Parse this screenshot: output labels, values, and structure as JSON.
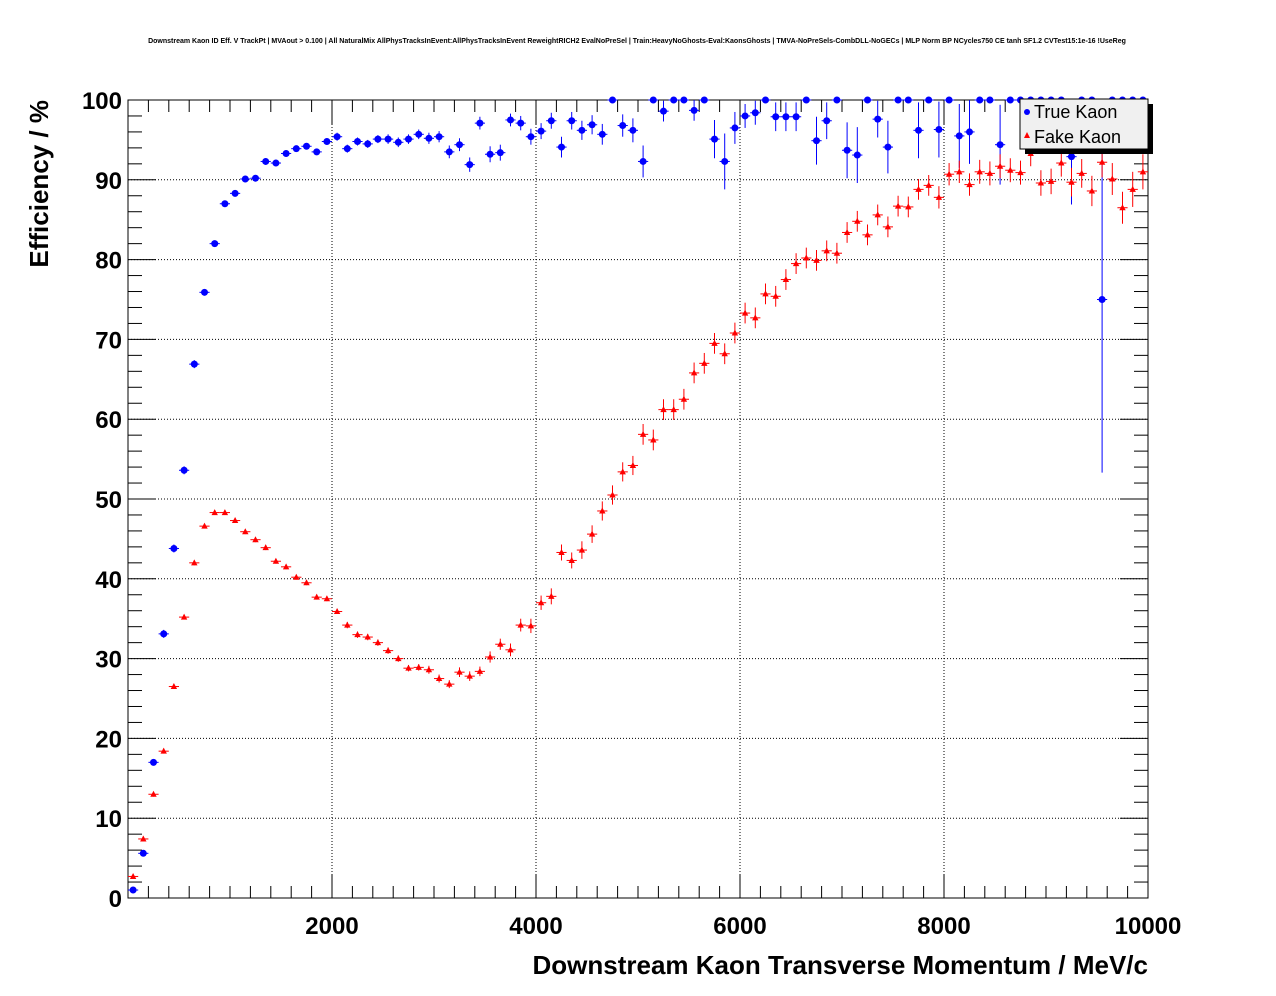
{
  "chart_data": {
    "type": "scatter",
    "title": "Downstream Kaon ID Eff. V TrackPt | MVAout > 0.100 | All NaturalMix AllPhysTracksInEvent:AllPhysTracksInEvent ReweightRICH2 EvalNoPreSel | Train:HeavyNoGhosts-Eval:KaonsGhosts | TMVA-NoPreSels-CombDLL-NoGECs | MLP Norm BP NCycles750 CE tanh SF1.2 CVTest15:1e-16 !UseReg",
    "xlabel": "Downstream Kaon Transverse Momentum / MeV/c",
    "ylabel": "Efficiency / %",
    "xlim": [
      0,
      10000
    ],
    "ylim": [
      0,
      100
    ],
    "x_ticks": [
      "2000",
      "4000",
      "6000",
      "8000",
      "10000"
    ],
    "y_ticks": [
      "0",
      "10",
      "20",
      "30",
      "40",
      "50",
      "60",
      "70",
      "80",
      "90",
      "100"
    ],
    "grid": true,
    "legend_position": "top-right",
    "bin_width": 100,
    "series": [
      {
        "name": "True Kaon",
        "color": "#0000ff",
        "marker": "circle",
        "x": [
          50,
          150,
          250,
          350,
          450,
          550,
          650,
          750,
          850,
          950,
          1050,
          1150,
          1250,
          1350,
          1450,
          1550,
          1650,
          1750,
          1850,
          1950,
          2050,
          2150,
          2250,
          2350,
          2450,
          2550,
          2650,
          2750,
          2850,
          2950,
          3050,
          3150,
          3250,
          3350,
          3450,
          3550,
          3650,
          3750,
          3850,
          3950,
          4050,
          4150,
          4250,
          4350,
          4450,
          4550,
          4650,
          4750,
          4850,
          4950,
          5050,
          5150,
          5250,
          5350,
          5450,
          5550,
          5650,
          5750,
          5850,
          5950,
          6050,
          6150,
          6250,
          6350,
          6450,
          6550,
          6650,
          6750,
          6850,
          6950,
          7050,
          7150,
          7250,
          7350,
          7450,
          7550,
          7650,
          7750,
          7850,
          7950,
          8050,
          8150,
          8250,
          8350,
          8450,
          8550,
          8650,
          8750,
          8850,
          8950,
          9050,
          9150,
          9250,
          9350,
          9450,
          9550,
          9650,
          9750,
          9850,
          9950
        ],
        "y": [
          1.0,
          5.6,
          17.0,
          33.1,
          43.8,
          53.6,
          66.9,
          75.9,
          82.0,
          87.0,
          88.3,
          90.1,
          90.2,
          92.3,
          92.1,
          93.3,
          93.9,
          94.2,
          93.5,
          94.8,
          95.4,
          93.9,
          94.8,
          94.5,
          95.1,
          95.1,
          94.7,
          95.1,
          95.7,
          95.2,
          95.4,
          93.5,
          94.4,
          91.9,
          97.1,
          93.2,
          93.4,
          97.5,
          97.1,
          95.4,
          96.1,
          97.4,
          94.1,
          97.4,
          96.2,
          96.9,
          95.7,
          100,
          96.8,
          96.2,
          92.3,
          100,
          98.6,
          100,
          100,
          98.7,
          100,
          95.1,
          92.3,
          96.5,
          98.0,
          98.4,
          100,
          97.9,
          97.9,
          97.9,
          100,
          94.9,
          97.4,
          100,
          93.7,
          93.1,
          100,
          97.6,
          94.1,
          100,
          100,
          96.2,
          100,
          96.3,
          100,
          95.5,
          96.0,
          100,
          100,
          94.4,
          100,
          100,
          100,
          100,
          100,
          100,
          92.9,
          100,
          100,
          75.0,
          100,
          100,
          100,
          100
        ],
        "y_err": [
          0.2,
          0.3,
          0.4,
          0.5,
          0.5,
          0.5,
          0.5,
          0.4,
          0.4,
          0.4,
          0.4,
          0.4,
          0.4,
          0.4,
          0.4,
          0.4,
          0.4,
          0.4,
          0.4,
          0.4,
          0.5,
          0.5,
          0.5,
          0.5,
          0.5,
          0.6,
          0.6,
          0.6,
          0.6,
          0.7,
          0.7,
          0.8,
          0.8,
          0.9,
          0.8,
          1.0,
          1.0,
          0.8,
          0.9,
          1.0,
          1.0,
          1.0,
          1.3,
          1.1,
          1.2,
          1.2,
          1.3,
          0.0,
          1.4,
          1.5,
          2.0,
          0.0,
          1.3,
          0.0,
          0.0,
          1.3,
          0.0,
          2.4,
          3.5,
          2.0,
          1.5,
          1.5,
          0.0,
          1.8,
          1.8,
          1.8,
          0.0,
          3.0,
          2.3,
          0.0,
          3.5,
          3.5,
          0.0,
          2.3,
          3.3,
          0.0,
          0.0,
          3.5,
          0.0,
          3.5,
          0.0,
          4.0,
          4.0,
          0.0,
          0.0,
          5.0,
          0.0,
          0.0,
          0.0,
          0.0,
          0.0,
          0.0,
          6.0,
          0.0,
          0.0,
          21.7,
          0.0,
          0.0,
          0.0,
          0.0
        ]
      },
      {
        "name": "Fake Kaon",
        "color": "#ff0000",
        "marker": "triangle",
        "x": [
          50,
          150,
          250,
          350,
          450,
          550,
          650,
          750,
          850,
          950,
          1050,
          1150,
          1250,
          1350,
          1450,
          1550,
          1650,
          1750,
          1850,
          1950,
          2050,
          2150,
          2250,
          2350,
          2450,
          2550,
          2650,
          2750,
          2850,
          2950,
          3050,
          3150,
          3250,
          3350,
          3450,
          3550,
          3650,
          3750,
          3850,
          3950,
          4050,
          4150,
          4250,
          4350,
          4450,
          4550,
          4650,
          4750,
          4850,
          4950,
          5050,
          5150,
          5250,
          5350,
          5450,
          5550,
          5650,
          5750,
          5850,
          5950,
          6050,
          6150,
          6250,
          6350,
          6450,
          6550,
          6650,
          6750,
          6850,
          6950,
          7050,
          7150,
          7250,
          7350,
          7450,
          7550,
          7650,
          7750,
          7850,
          7950,
          8050,
          8150,
          8250,
          8350,
          8450,
          8550,
          8650,
          8750,
          8850,
          8950,
          9050,
          9150,
          9250,
          9350,
          9450,
          9550,
          9650,
          9750,
          9850,
          9950
        ],
        "y": [
          2.7,
          7.4,
          13.0,
          18.4,
          26.5,
          35.2,
          42.0,
          46.6,
          48.3,
          48.3,
          47.3,
          45.9,
          44.9,
          43.9,
          42.2,
          41.5,
          40.2,
          39.5,
          37.7,
          37.5,
          35.9,
          34.2,
          33.0,
          32.7,
          32.0,
          31.0,
          30.0,
          28.8,
          28.9,
          28.6,
          27.5,
          26.8,
          28.3,
          27.8,
          28.4,
          30.2,
          31.8,
          31.1,
          34.2,
          34.1,
          37.0,
          37.8,
          43.3,
          42.3,
          43.6,
          45.6,
          48.5,
          50.5,
          53.4,
          54.2,
          58.1,
          57.4,
          61.2,
          61.2,
          62.5,
          65.8,
          67.0,
          69.5,
          68.2,
          70.8,
          73.3,
          72.7,
          75.7,
          75.4,
          77.5,
          79.5,
          80.2,
          79.9,
          81.1,
          80.8,
          83.4,
          84.8,
          83.1,
          85.6,
          84.1,
          86.7,
          86.6,
          88.8,
          89.3,
          87.8,
          90.7,
          91.0,
          89.4,
          91.0,
          90.8,
          91.7,
          91.2,
          90.9,
          93.3,
          89.6,
          89.8,
          92.1,
          89.7,
          90.8,
          88.6,
          92.2,
          90.1,
          86.5,
          88.8,
          91.0
        ],
        "y_err": [
          0.3,
          0.3,
          0.3,
          0.3,
          0.3,
          0.3,
          0.3,
          0.3,
          0.3,
          0.3,
          0.3,
          0.3,
          0.3,
          0.3,
          0.3,
          0.3,
          0.3,
          0.3,
          0.3,
          0.3,
          0.3,
          0.4,
          0.4,
          0.4,
          0.4,
          0.4,
          0.4,
          0.4,
          0.4,
          0.5,
          0.5,
          0.5,
          0.6,
          0.6,
          0.6,
          0.7,
          0.7,
          0.8,
          0.8,
          0.9,
          0.9,
          1.0,
          1.0,
          1.0,
          1.1,
          1.1,
          1.2,
          1.2,
          1.2,
          1.2,
          1.3,
          1.3,
          1.3,
          1.3,
          1.3,
          1.3,
          1.3,
          1.3,
          1.3,
          1.3,
          1.3,
          1.3,
          1.3,
          1.3,
          1.3,
          1.3,
          1.3,
          1.3,
          1.3,
          1.3,
          1.3,
          1.3,
          1.3,
          1.3,
          1.3,
          1.3,
          1.3,
          1.3,
          1.3,
          1.4,
          1.4,
          1.4,
          1.4,
          1.5,
          1.5,
          1.5,
          1.5,
          1.5,
          1.6,
          1.6,
          1.6,
          1.7,
          1.8,
          1.8,
          1.9,
          1.9,
          2.0,
          2.0,
          2.2,
          2.2
        ]
      }
    ]
  }
}
